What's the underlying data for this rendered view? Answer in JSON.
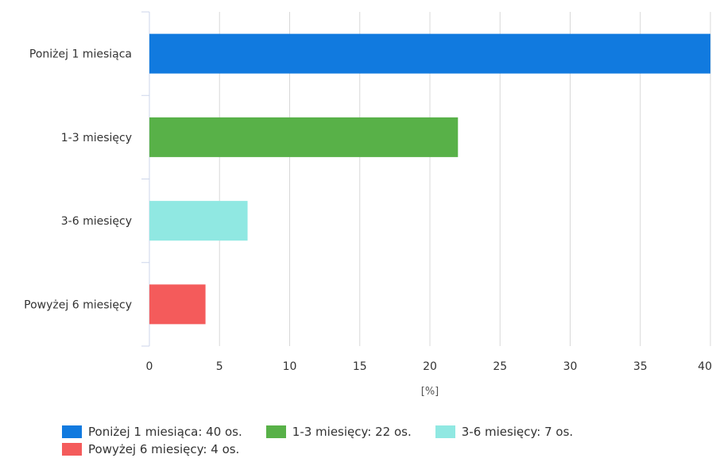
{
  "chart_data": {
    "type": "bar",
    "orientation": "horizontal",
    "title": "",
    "xlabel": "[%]",
    "ylabel": "",
    "categories": [
      "Poniżej 1 miesiąca",
      "1-3 miesięcy",
      "3-6 miesięcy",
      "Powyżej 6 miesięcy"
    ],
    "values": [
      40,
      22,
      7,
      4
    ],
    "colors": [
      "#117adf",
      "#58b148",
      "#90e8e2",
      "#f45b5b"
    ],
    "xlim": [
      0,
      40
    ],
    "xticks": [
      "0",
      "5",
      "10",
      "15",
      "20",
      "25",
      "30",
      "35",
      "40"
    ],
    "grid": true,
    "legend_position": "bottom",
    "legend": [
      {
        "label": "Poniżej 1 miesiąca: 40 os.",
        "color": "#117adf"
      },
      {
        "label": "1-3 miesięcy: 22 os.",
        "color": "#58b148"
      },
      {
        "label": "3-6 miesięcy: 7 os.",
        "color": "#90e8e2"
      },
      {
        "label": "Powyżej 6 miesięcy: 4 os.",
        "color": "#f45b5b"
      }
    ]
  }
}
